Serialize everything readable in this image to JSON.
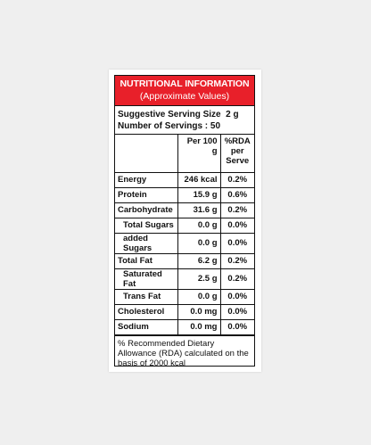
{
  "header": {
    "title": "NUTRITIONAL INFORMATION",
    "subtitle": "(Approximate Values)"
  },
  "serving": {
    "size": "Suggestive Serving Size  2 g",
    "count": "Number of Servings : 50"
  },
  "table": {
    "columns": [
      "",
      "Per 100 g",
      "%RDA per Serve"
    ],
    "rows": [
      {
        "name": "Energy",
        "per100": "246 kcal",
        "rda": "0.2%"
      },
      {
        "name": "Protein",
        "per100": "15.9 g",
        "rda": "0.6%"
      },
      {
        "name": "Carbohydrate",
        "per100": "31.6 g",
        "rda": "0.2%"
      },
      {
        "name": "Total Sugars",
        "per100": "0.0 g",
        "rda": "0.0%"
      },
      {
        "name": "added Sugars",
        "per100": "0.0 g",
        "rda": "0.0%"
      },
      {
        "name": "Total Fat",
        "per100": "6.2 g",
        "rda": "0.2%"
      },
      {
        "name": "Saturated Fat",
        "per100": "2.5 g",
        "rda": "0.2%"
      },
      {
        "name": "Trans Fat",
        "per100": "0.0 g",
        "rda": "0.0%"
      },
      {
        "name": "Cholesterol",
        "per100": "0.0 mg",
        "rda": "0.0%"
      },
      {
        "name": "Sodium",
        "per100": "0.0 mg",
        "rda": "0.0%"
      }
    ]
  },
  "footnote": "% Recommended Dietary Allowance (RDA) calculated on the basis of 2000 kcal",
  "colors": {
    "header_bg": "#e8202a",
    "text": "#111111",
    "background": "#efefef"
  }
}
